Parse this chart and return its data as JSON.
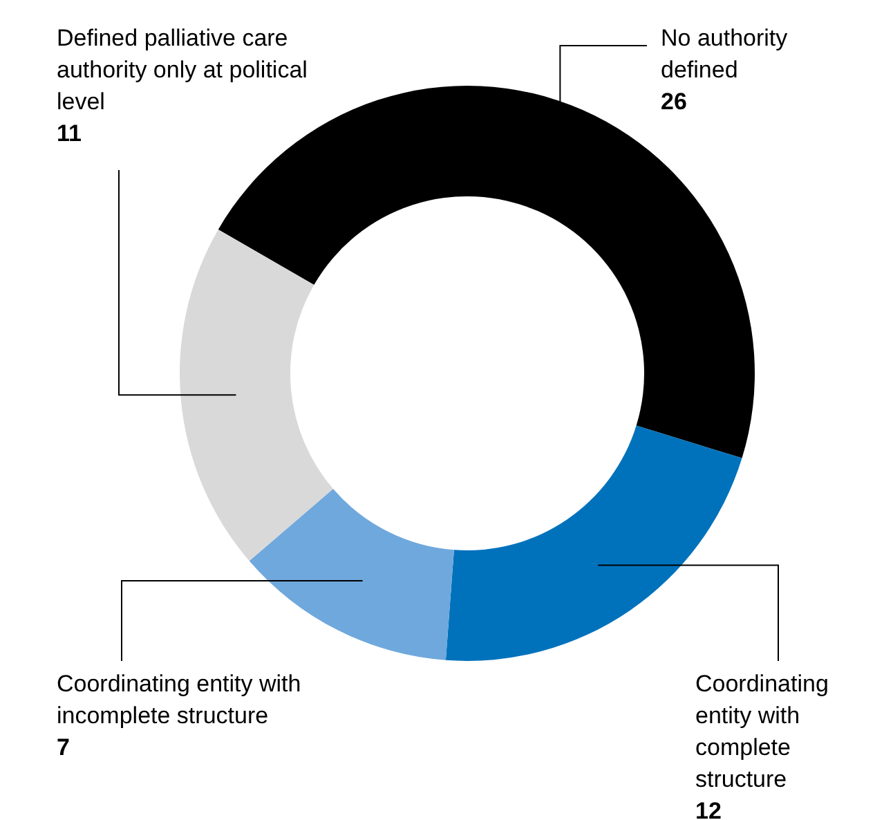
{
  "chart_data": {
    "type": "donut",
    "categories": [
      "No authority defined",
      "Coordinating entity with complete structure",
      "Coordinating entity with incomplete structure",
      "Defined palliative care authority only at political level"
    ],
    "values": [
      26,
      12,
      7,
      11
    ],
    "colors": [
      "#000000",
      "#0072bc",
      "#6fa8dc",
      "#d9d9d9"
    ],
    "data_labels": true
  }
}
